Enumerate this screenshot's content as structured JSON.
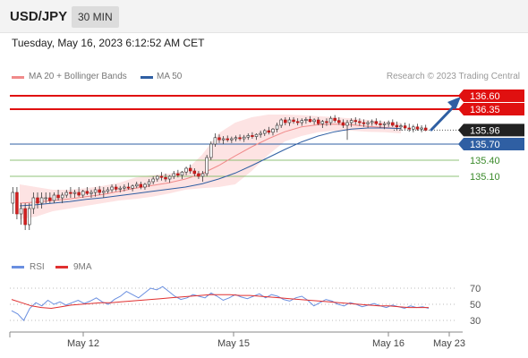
{
  "header": {
    "symbol": "USD/JPY",
    "timeframe": "30 MIN"
  },
  "datetime": "Tuesday, May 16, 2023 6:12:52 AM CET",
  "legend": {
    "ma20": {
      "label": "MA 20 + Bollinger Bands",
      "color": "#f08a8a"
    },
    "ma50": {
      "label": "MA 50",
      "color": "#2f5fa3"
    },
    "credit": "Research © 2023 Trading Central"
  },
  "rsi_legend": {
    "rsi": {
      "label": "RSI",
      "color": "#6a8fe0"
    },
    "ma": {
      "label": "9MA",
      "color": "#e03030"
    }
  },
  "chart_data": [
    {
      "type": "candlestick",
      "ylim": [
        134.0,
        136.8
      ],
      "x_ticks": [
        "May 12",
        "May 15",
        "May 16",
        "May 23"
      ],
      "levels": [
        {
          "value": "136.60",
          "color": "#e01010",
          "style": "resistance"
        },
        {
          "value": "136.35",
          "color": "#e01010",
          "style": "resistance"
        },
        {
          "value": "135.96",
          "color": "#222222",
          "style": "current"
        },
        {
          "value": "135.70",
          "color": "#2f5fa3",
          "style": "pivot"
        },
        {
          "value": "135.40",
          "color": "#6ab04c",
          "style": "support"
        },
        {
          "value": "135.10",
          "color": "#6ab04c",
          "style": "support"
        }
      ],
      "ohlc": [
        [
          134.6,
          134.9,
          134.4,
          134.8
        ],
        [
          134.8,
          134.9,
          134.3,
          134.4
        ],
        [
          134.4,
          134.6,
          134.2,
          134.5
        ],
        [
          134.5,
          134.6,
          134.1,
          134.2
        ],
        [
          134.2,
          134.6,
          134.1,
          134.5
        ],
        [
          134.5,
          134.8,
          134.4,
          134.7
        ],
        [
          134.7,
          134.8,
          134.5,
          134.6
        ],
        [
          134.6,
          134.8,
          134.5,
          134.7
        ],
        [
          134.7,
          134.8,
          134.6,
          134.7
        ],
        [
          134.7,
          134.8,
          134.6,
          134.65
        ],
        [
          134.65,
          134.8,
          134.6,
          134.75
        ],
        [
          134.75,
          134.85,
          134.65,
          134.7
        ],
        [
          134.7,
          134.8,
          134.6,
          134.75
        ],
        [
          134.75,
          134.85,
          134.7,
          134.8
        ],
        [
          134.8,
          134.9,
          134.7,
          134.78
        ],
        [
          134.78,
          134.85,
          134.7,
          134.8
        ],
        [
          134.8,
          134.9,
          134.72,
          134.75
        ],
        [
          134.75,
          134.85,
          134.7,
          134.82
        ],
        [
          134.82,
          134.9,
          134.75,
          134.78
        ],
        [
          134.78,
          134.85,
          134.7,
          134.8
        ],
        [
          134.8,
          134.9,
          134.72,
          134.85
        ],
        [
          134.85,
          134.92,
          134.75,
          134.8
        ],
        [
          134.8,
          134.9,
          134.7,
          134.82
        ],
        [
          134.82,
          134.9,
          134.78,
          134.85
        ],
        [
          134.85,
          134.95,
          134.8,
          134.9
        ],
        [
          134.9,
          134.95,
          134.82,
          134.86
        ],
        [
          134.86,
          134.92,
          134.8,
          134.88
        ],
        [
          134.88,
          134.95,
          134.82,
          134.9
        ],
        [
          134.9,
          134.98,
          134.85,
          134.88
        ],
        [
          134.88,
          134.95,
          134.82,
          134.92
        ],
        [
          134.92,
          135.0,
          134.88,
          134.95
        ],
        [
          134.95,
          135.0,
          134.86,
          134.9
        ],
        [
          134.9,
          134.98,
          134.85,
          134.95
        ],
        [
          134.95,
          135.05,
          134.9,
          135.0
        ],
        [
          135.0,
          135.1,
          134.95,
          135.05
        ],
        [
          135.05,
          135.12,
          135.0,
          135.1
        ],
        [
          135.1,
          135.18,
          135.02,
          135.08
        ],
        [
          135.08,
          135.15,
          135.0,
          135.05
        ],
        [
          135.05,
          135.12,
          134.98,
          135.1
        ],
        [
          135.1,
          135.2,
          135.05,
          135.15
        ],
        [
          135.15,
          135.22,
          135.08,
          135.12
        ],
        [
          135.12,
          135.2,
          135.05,
          135.18
        ],
        [
          135.18,
          135.28,
          135.12,
          135.25
        ],
        [
          135.25,
          135.32,
          135.15,
          135.2
        ],
        [
          135.2,
          135.25,
          135.1,
          135.15
        ],
        [
          135.15,
          135.2,
          135.05,
          135.1
        ],
        [
          135.1,
          135.2,
          135.0,
          135.15
        ],
        [
          135.15,
          135.5,
          135.1,
          135.45
        ],
        [
          135.45,
          135.75,
          135.4,
          135.7
        ],
        [
          135.7,
          135.9,
          135.65,
          135.82
        ],
        [
          135.82,
          135.88,
          135.72,
          135.78
        ],
        [
          135.78,
          135.85,
          135.7,
          135.8
        ],
        [
          135.8,
          135.86,
          135.74,
          135.78
        ],
        [
          135.78,
          135.84,
          135.72,
          135.8
        ],
        [
          135.8,
          135.86,
          135.75,
          135.82
        ],
        [
          135.82,
          135.88,
          135.76,
          135.8
        ],
        [
          135.8,
          135.87,
          135.74,
          135.83
        ],
        [
          135.83,
          135.9,
          135.78,
          135.86
        ],
        [
          135.86,
          135.92,
          135.8,
          135.84
        ],
        [
          135.84,
          135.9,
          135.78,
          135.88
        ],
        [
          135.88,
          135.95,
          135.82,
          135.9
        ],
        [
          135.9,
          135.98,
          135.85,
          135.95
        ],
        [
          135.95,
          136.02,
          135.88,
          135.92
        ],
        [
          135.92,
          136.0,
          135.86,
          135.98
        ],
        [
          135.98,
          136.1,
          135.92,
          136.05
        ],
        [
          136.05,
          136.18,
          136.0,
          136.15
        ],
        [
          136.15,
          136.2,
          136.05,
          136.1
        ],
        [
          136.1,
          136.2,
          136.04,
          136.15
        ],
        [
          136.15,
          136.2,
          136.08,
          136.12
        ],
        [
          136.12,
          136.18,
          136.05,
          136.1
        ],
        [
          136.1,
          136.18,
          136.04,
          136.14
        ],
        [
          136.14,
          136.2,
          136.08,
          136.16
        ],
        [
          136.16,
          136.22,
          136.1,
          136.12
        ],
        [
          136.12,
          136.18,
          136.06,
          136.15
        ],
        [
          136.15,
          136.2,
          136.05,
          136.08
        ],
        [
          136.08,
          136.15,
          136.0,
          136.12
        ],
        [
          136.12,
          136.18,
          136.04,
          136.1
        ],
        [
          136.1,
          136.22,
          136.05,
          136.18
        ],
        [
          136.18,
          136.24,
          136.1,
          136.14
        ],
        [
          136.14,
          136.2,
          136.06,
          136.1
        ],
        [
          136.1,
          136.16,
          136.0,
          136.05
        ],
        [
          136.05,
          136.15,
          135.78,
          136.1
        ],
        [
          136.1,
          136.18,
          136.02,
          136.14
        ],
        [
          136.14,
          136.2,
          136.06,
          136.12
        ],
        [
          136.12,
          136.18,
          136.04,
          136.1
        ],
        [
          136.1,
          136.16,
          136.02,
          136.08
        ],
        [
          136.08,
          136.14,
          136.0,
          136.1
        ],
        [
          136.1,
          136.16,
          136.04,
          136.12
        ],
        [
          136.12,
          136.18,
          136.05,
          136.08
        ],
        [
          136.08,
          136.14,
          136.0,
          136.06
        ],
        [
          136.06,
          136.12,
          135.98,
          136.08
        ],
        [
          136.08,
          136.14,
          136.02,
          136.1
        ],
        [
          136.1,
          136.16,
          136.02,
          136.05
        ],
        [
          136.05,
          136.12,
          135.96,
          136.02
        ],
        [
          136.02,
          136.08,
          135.95,
          136.04
        ],
        [
          136.04,
          136.1,
          135.97,
          136.0
        ],
        [
          136.0,
          136.08,
          135.93,
          135.98
        ],
        [
          135.98,
          136.06,
          135.92,
          136.02
        ],
        [
          136.02,
          136.08,
          135.95,
          135.98
        ],
        [
          135.98,
          136.05,
          135.92,
          136.0
        ],
        [
          136.0,
          136.06,
          135.94,
          135.96
        ]
      ],
      "ma20": [
        134.6,
        134.62,
        134.65,
        134.68,
        134.72,
        134.76,
        134.82,
        134.88,
        134.93,
        134.98,
        135.05,
        135.15,
        135.3,
        135.48,
        135.65,
        135.8,
        135.93,
        136.02,
        136.06,
        136.07,
        136.06,
        136.03,
        136.01,
        135.99
      ],
      "ma50": [
        134.55,
        134.57,
        134.6,
        134.63,
        134.67,
        134.7,
        134.74,
        134.78,
        134.82,
        134.86,
        134.9,
        134.96,
        135.05,
        135.16,
        135.3,
        135.45,
        135.6,
        135.74,
        135.85,
        135.93,
        135.98,
        136.0,
        136.0,
        135.99
      ],
      "bb_upper": [
        134.95,
        134.9,
        134.85,
        134.85,
        134.88,
        134.92,
        134.98,
        135.08,
        135.12,
        135.15,
        135.2,
        135.5,
        135.9,
        136.1,
        136.2,
        136.25,
        136.25,
        136.24,
        136.22,
        136.2,
        136.18,
        136.15,
        136.12,
        136.1
      ],
      "bb_lower": [
        134.3,
        134.35,
        134.45,
        134.5,
        134.55,
        134.6,
        134.65,
        134.68,
        134.72,
        134.78,
        134.85,
        134.88,
        134.9,
        134.95,
        135.2,
        135.5,
        135.75,
        135.85,
        135.92,
        135.95,
        135.95,
        135.93,
        135.92,
        135.9
      ]
    },
    {
      "type": "line",
      "title": "RSI",
      "ylim": [
        20,
        80
      ],
      "y_ticks": [
        "70",
        "50",
        "30"
      ],
      "series": [
        {
          "name": "RSI",
          "values": [
            42,
            38,
            30,
            45,
            52,
            48,
            55,
            50,
            53,
            49,
            52,
            55,
            51,
            54,
            58,
            53,
            50,
            56,
            60,
            66,
            62,
            58,
            64,
            70,
            68,
            72,
            66,
            60,
            56,
            58,
            62,
            60,
            58,
            64,
            60,
            55,
            58,
            62,
            59,
            57,
            60,
            63,
            58,
            62,
            60,
            56,
            54,
            58,
            60,
            55,
            48,
            52,
            56,
            54,
            50,
            48,
            52,
            50,
            47,
            49,
            51,
            48,
            46,
            49,
            47,
            45,
            48,
            46,
            47,
            45
          ]
        },
        {
          "name": "9MA",
          "values": [
            56,
            52,
            48,
            46,
            45,
            47,
            49,
            50,
            51,
            52,
            52,
            53,
            54,
            55,
            56,
            57,
            58,
            59,
            60,
            61,
            62,
            62,
            62,
            61,
            61,
            60,
            59,
            58,
            57,
            56,
            55,
            54,
            53,
            52,
            51,
            50,
            49,
            48,
            48,
            47,
            46,
            46,
            46
          ]
        }
      ]
    }
  ]
}
